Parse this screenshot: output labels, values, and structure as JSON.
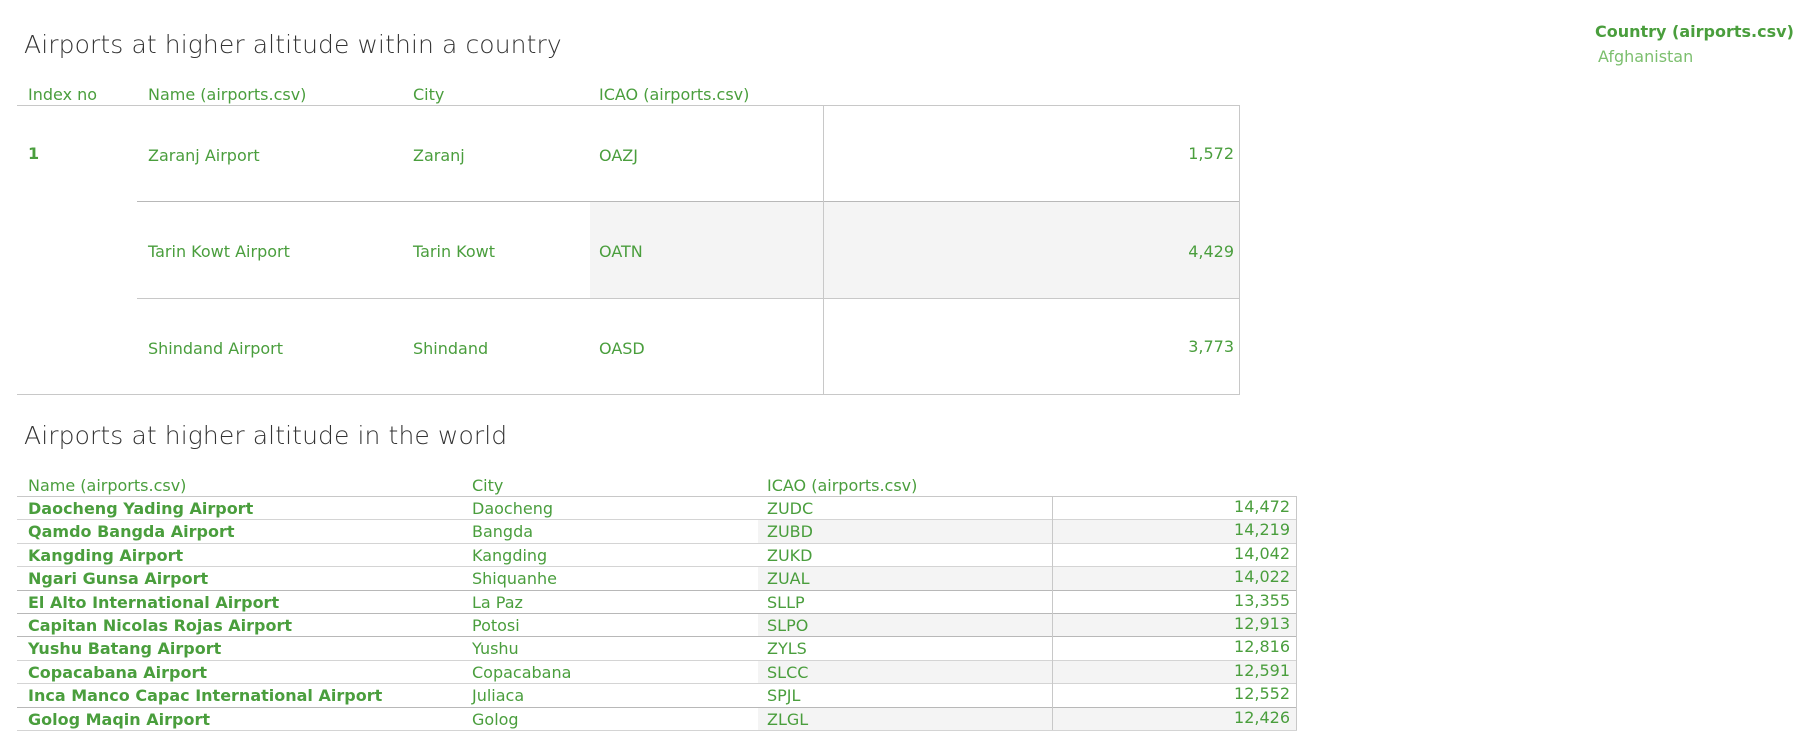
{
  "colors": {
    "accent": "#4a9e3d",
    "title": "#333333",
    "grid": "#c8c8c8",
    "shade": "#f4f4f4"
  },
  "legend": {
    "title": "Country (airports.csv)",
    "item": "Afghanistan"
  },
  "country_section": {
    "title": "Airports at higher altitude within a country",
    "headers": {
      "index": "Index no",
      "name": "Name (airports.csv)",
      "city": "City",
      "icao": "ICAO (airports.csv)"
    },
    "index_value": "1",
    "rows": [
      {
        "name": "Zaranj Airport",
        "city": "Zaranj",
        "icao": "OAZJ",
        "altitude": "1,572"
      },
      {
        "name": "Tarin Kowt Airport",
        "city": "Tarin Kowt",
        "icao": "OATN",
        "altitude": "4,429"
      },
      {
        "name": "Shindand Airport",
        "city": "Shindand",
        "icao": "OASD",
        "altitude": "3,773"
      }
    ]
  },
  "world_section": {
    "title": "Airports at higher altitude in the world",
    "headers": {
      "name": "Name (airports.csv)",
      "city": "City",
      "icao": "ICAO (airports.csv)"
    },
    "rows": [
      {
        "name": "Daocheng Yading Airport",
        "city": "Daocheng",
        "icao": "ZUDC",
        "altitude": "14,472"
      },
      {
        "name": "Qamdo Bangda Airport",
        "city": "Bangda",
        "icao": "ZUBD",
        "altitude": "14,219"
      },
      {
        "name": "Kangding Airport",
        "city": "Kangding",
        "icao": "ZUKD",
        "altitude": "14,042"
      },
      {
        "name": "Ngari Gunsa Airport",
        "city": "Shiquanhe",
        "icao": "ZUAL",
        "altitude": "14,022"
      },
      {
        "name": "El Alto International Airport",
        "city": "La Paz",
        "icao": "SLLP",
        "altitude": "13,355"
      },
      {
        "name": "Capitan Nicolas Rojas Airport",
        "city": "Potosi",
        "icao": "SLPO",
        "altitude": "12,913"
      },
      {
        "name": "Yushu Batang Airport",
        "city": "Yushu",
        "icao": "ZYLS",
        "altitude": "12,816"
      },
      {
        "name": "Copacabana Airport",
        "city": "Copacabana",
        "icao": "SLCC",
        "altitude": "12,591"
      },
      {
        "name": "Inca Manco Capac International Airport",
        "city": "Juliaca",
        "icao": "SPJL",
        "altitude": "12,552"
      },
      {
        "name": "Golog Maqin Airport",
        "city": "Golog",
        "icao": "ZLGL",
        "altitude": "12,426"
      }
    ]
  }
}
